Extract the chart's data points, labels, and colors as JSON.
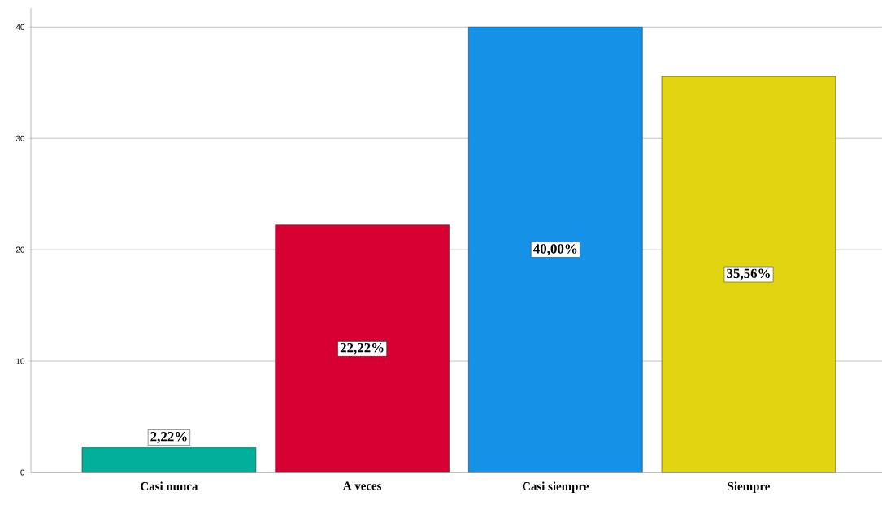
{
  "chart_data": {
    "type": "bar",
    "categories": [
      "Casi nunca",
      "A veces",
      "Casi siempre",
      "Siempre"
    ],
    "values": [
      2.22,
      22.22,
      40,
      35.56
    ],
    "colors": [
      "#00b09a",
      "#d60032",
      "#1591e8",
      "#e0d510"
    ],
    "value_labels": [
      "2,22%",
      "22,22%",
      "40,00%",
      "35,56%"
    ],
    "ylim": [
      0,
      41.7
    ],
    "yticks": [
      0,
      10,
      20,
      30,
      40
    ],
    "grid": "y"
  }
}
